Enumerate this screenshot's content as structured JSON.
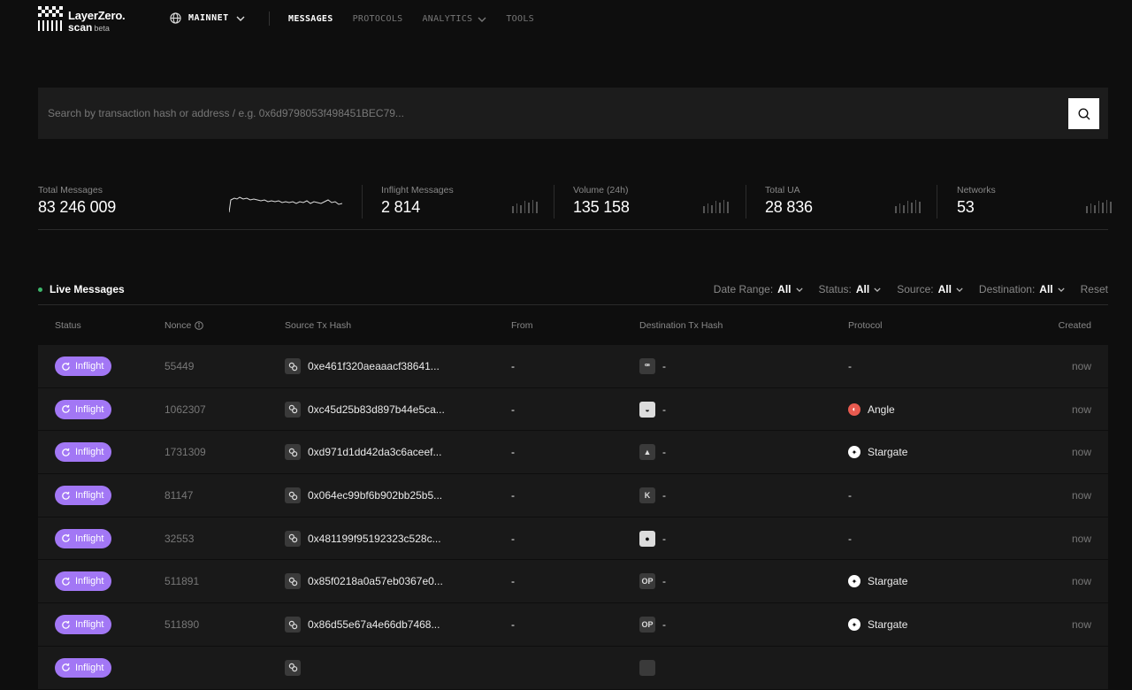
{
  "nav": {
    "logo_line1": "LayerZero.",
    "logo_line2": "scan",
    "logo_beta": "beta",
    "network": "MAINNET",
    "links": [
      {
        "label": "MESSAGES",
        "active": true
      },
      {
        "label": "PROTOCOLS",
        "active": false
      },
      {
        "label": "ANALYTICS",
        "active": false
      },
      {
        "label": "TOOLS",
        "active": false
      }
    ]
  },
  "search": {
    "placeholder": "Search by transaction hash or address / e.g. 0x6d9798053f498451BEC79...",
    "icon": "search-icon"
  },
  "stats": [
    {
      "label": "Total Messages",
      "value": "83 246 009"
    },
    {
      "label": "Inflight Messages",
      "value": "2 814"
    },
    {
      "label": "Volume (24h)",
      "value": "135 158"
    },
    {
      "label": "Total UA",
      "value": "28 836"
    },
    {
      "label": "Networks",
      "value": "53"
    }
  ],
  "live": {
    "title": "Live Messages",
    "filters": [
      {
        "label": "Date Range:",
        "value": "All"
      },
      {
        "label": "Status:",
        "value": "All"
      },
      {
        "label": "Source:",
        "value": "All"
      },
      {
        "label": "Destination:",
        "value": "All"
      }
    ],
    "reset": "Reset"
  },
  "table": {
    "headers": {
      "status": "Status",
      "nonce": "Nonce",
      "source": "Source Tx Hash",
      "from": "From",
      "dest": "Destination Tx Hash",
      "protocol": "Protocol",
      "created": "Created"
    },
    "rows": [
      {
        "status": "Inflight",
        "nonce": "55449",
        "source": "0xe461f320aeaaacf38641...",
        "from": "-",
        "dest_icon": "ꟹ",
        "dest": "-",
        "protocol": "-",
        "protocol_icon": "",
        "created": "now"
      },
      {
        "status": "Inflight",
        "nonce": "1062307",
        "source": "0xc45d25b83d897b44e5ca...",
        "from": "-",
        "dest_icon": "◒",
        "dest": "-",
        "protocol": "Angle",
        "protocol_icon": "angle",
        "created": "now"
      },
      {
        "status": "Inflight",
        "nonce": "1731309",
        "source": "0xd971d1dd42da3c6aceef...",
        "from": "-",
        "dest_icon": "▲",
        "dest": "-",
        "protocol": "Stargate",
        "protocol_icon": "stargate",
        "created": "now"
      },
      {
        "status": "Inflight",
        "nonce": "81147",
        "source": "0x064ec99bf6b902bb25b5...",
        "from": "-",
        "dest_icon": "K",
        "dest": "-",
        "protocol": "-",
        "protocol_icon": "",
        "created": "now"
      },
      {
        "status": "Inflight",
        "nonce": "32553",
        "source": "0x481199f95192323c528c...",
        "from": "-",
        "dest_icon": "●",
        "dest": "-",
        "protocol": "-",
        "protocol_icon": "",
        "created": "now"
      },
      {
        "status": "Inflight",
        "nonce": "511891",
        "source": "0x85f0218a0a57eb0367e0...",
        "from": "-",
        "dest_icon": "OP",
        "dest": "-",
        "protocol": "Stargate",
        "protocol_icon": "stargate",
        "created": "now"
      },
      {
        "status": "Inflight",
        "nonce": "511890",
        "source": "0x86d55e67a4e66db7468...",
        "from": "-",
        "dest_icon": "OP",
        "dest": "-",
        "protocol": "Stargate",
        "protocol_icon": "stargate",
        "created": "now"
      },
      {
        "status": "Inflight",
        "nonce": "",
        "source": "",
        "from": "",
        "dest_icon": "",
        "dest": "",
        "protocol": "",
        "protocol_icon": "",
        "created": ""
      }
    ]
  }
}
